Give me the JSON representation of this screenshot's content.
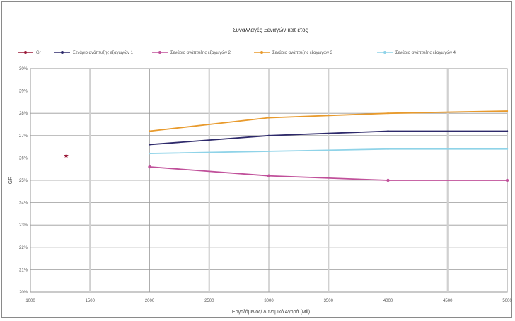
{
  "chart_data": {
    "type": "line",
    "title": "Συναλλαγές Ξεναγών κατ έτος",
    "xlabel": "Εργαζόμενος/ Δυναμικό Αγορά (Mil)",
    "ylabel": "GR",
    "xlim": [
      1000,
      4000
    ],
    "ylim": [
      20,
      30
    ],
    "x_ticks": [
      "1000",
      "1500",
      "2000",
      "2500",
      "3000",
      "3500",
      "4000",
      "4500",
      "5000"
    ],
    "y_ticks": [
      "20%",
      "21%",
      "22%",
      "23%",
      "24%",
      "25%",
      "26%",
      "27%",
      "28%",
      "29%",
      "30%"
    ],
    "grid": true,
    "legend_position": "top",
    "series": [
      {
        "name": "Gr",
        "color": "#9b1b3a",
        "marker": "star",
        "points": [
          [
            1300,
            26.1
          ]
        ]
      },
      {
        "name": "Σενάριο ανάπτυξης εξαγωγών 1",
        "color": "#2e2a6b",
        "marker": "none",
        "points": [
          [
            2000,
            26.6
          ],
          [
            3000,
            27.0
          ],
          [
            4000,
            27.2
          ],
          [
            5000,
            27.2
          ]
        ]
      },
      {
        "name": "Σενάριο ανάπτυξης εξαγωγών 2",
        "color": "#c0509a",
        "marker": "dot",
        "points": [
          [
            2000,
            25.6
          ],
          [
            3000,
            25.2
          ],
          [
            4000,
            25.0
          ],
          [
            5000,
            25.0
          ]
        ]
      },
      {
        "name": "Σενάριο ανάπτυξης εξαγωγών 3",
        "color": "#e89a2c",
        "marker": "none",
        "points": [
          [
            2000,
            27.2
          ],
          [
            3000,
            27.8
          ],
          [
            4000,
            28.0
          ],
          [
            5000,
            28.1
          ]
        ]
      },
      {
        "name": "Σενάριο ανάπτυξης εξαγωγών 4",
        "color": "#8fd3e8",
        "marker": "none",
        "points": [
          [
            2000,
            26.2
          ],
          [
            3000,
            26.3
          ],
          [
            4000,
            26.4
          ],
          [
            5000,
            26.4
          ]
        ]
      }
    ],
    "colors": {
      "axis": "#888888",
      "grid": "#9a9a9a",
      "grid_alt": "#d0d0d0"
    }
  }
}
